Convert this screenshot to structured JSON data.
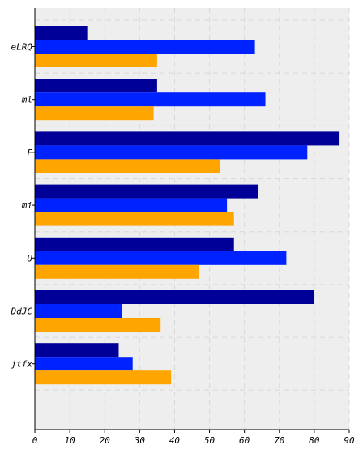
{
  "chart_data": {
    "type": "bar",
    "orientation": "horizontal",
    "categories": [
      "eLRQ",
      "ml",
      "F",
      "mi",
      "U",
      "DdJC",
      "jtfx"
    ],
    "series": [
      {
        "values": [
          15,
          35,
          87,
          64,
          57,
          80,
          24
        ],
        "color": "#000099"
      },
      {
        "values": [
          63,
          66,
          78,
          55,
          72,
          25,
          28
        ],
        "color": "#0022ff"
      },
      {
        "values": [
          35,
          34,
          53,
          57,
          47,
          36,
          39
        ],
        "color": "#ffa500"
      }
    ],
    "xlim": [
      0,
      90
    ],
    "x_ticks": [
      0,
      10,
      20,
      30,
      40,
      50,
      60,
      70,
      80,
      90
    ],
    "title": "",
    "xlabel": "",
    "ylabel": "",
    "grid": true,
    "legend": "none"
  }
}
